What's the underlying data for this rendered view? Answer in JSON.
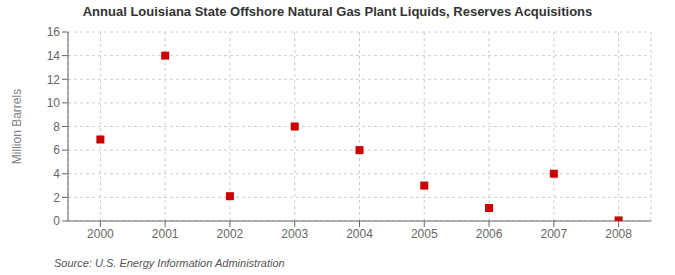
{
  "chart_data": {
    "type": "scatter",
    "title": "Annual Louisiana State Offshore Natural Gas Plant Liquids, Reserves Acquisitions",
    "ylabel": "Million Barrels",
    "annotations": [
      "Source: U.S. Energy Information Administration"
    ],
    "x": [
      2000,
      2001,
      2002,
      2003,
      2004,
      2005,
      2006,
      2007,
      2008
    ],
    "values": [
      6.9,
      14.0,
      2.1,
      8.0,
      6.0,
      3.0,
      1.1,
      4.0,
      0.05
    ],
    "xlim": [
      1999.5,
      2008.5
    ],
    "xticks": [
      2000,
      2001,
      2002,
      2003,
      2004,
      2005,
      2006,
      2007,
      2008
    ],
    "ylim": [
      0,
      16
    ],
    "yticks": [
      0,
      2,
      4,
      6,
      8,
      10,
      12,
      14,
      16
    ],
    "color": "#cc0000",
    "marker": "square",
    "grid": true
  }
}
